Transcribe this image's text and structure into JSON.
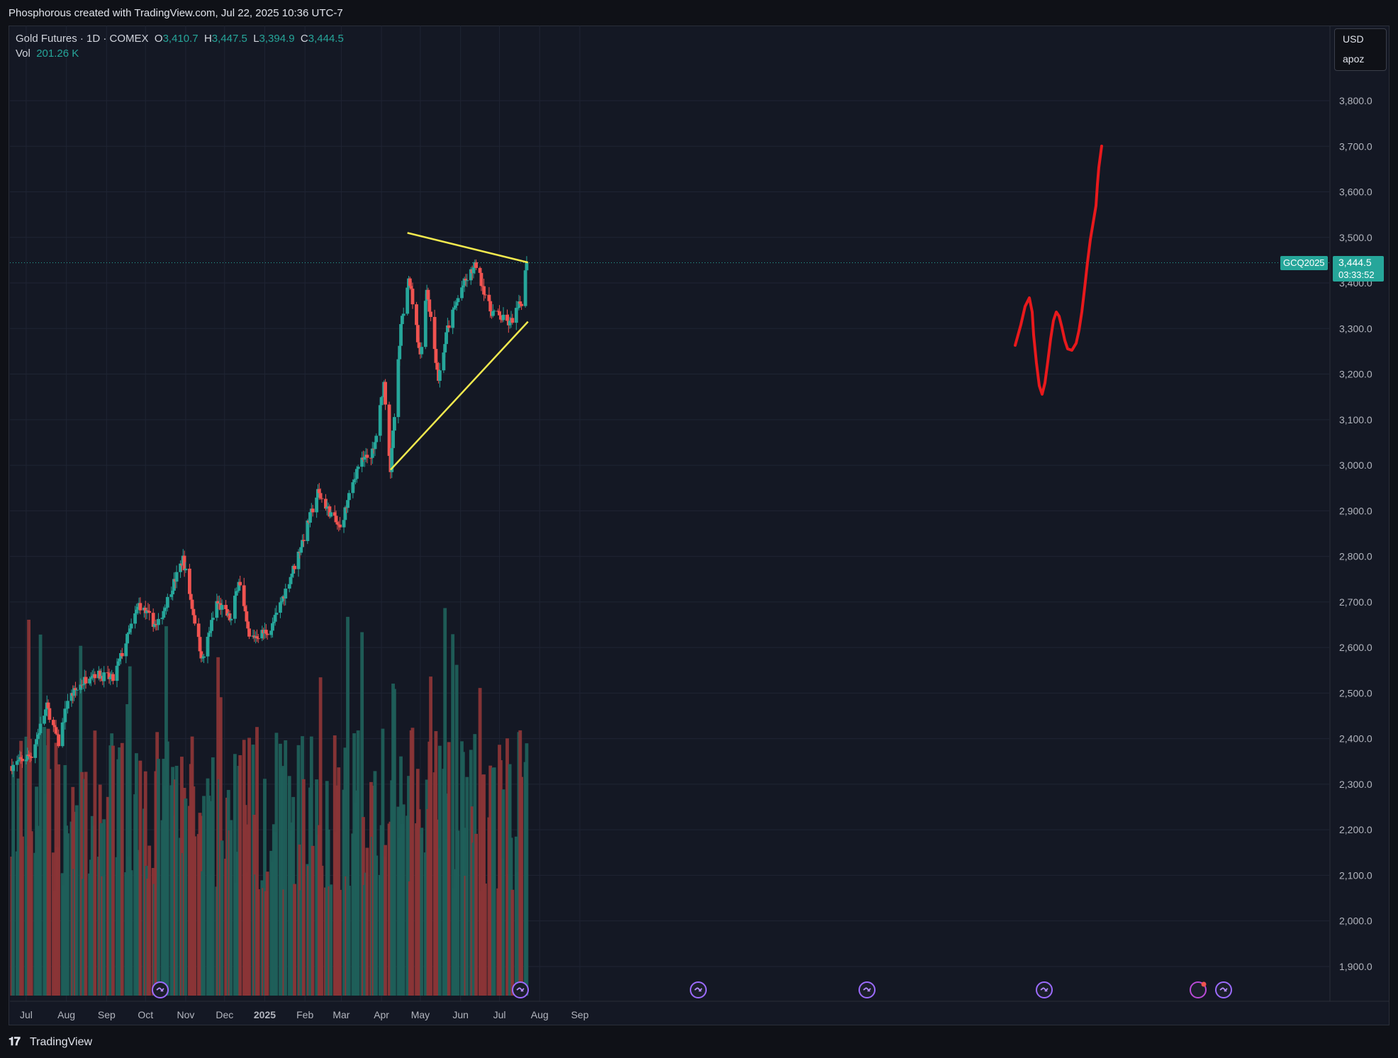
{
  "header": {
    "caption": "Phosphorous created with TradingView.com, Jul 22, 2025 10:36 UTC-7"
  },
  "legend": {
    "symbol": "Gold Futures · 1D · COMEX",
    "open_label": "O",
    "open": "3,410.7",
    "high_label": "H",
    "high": "3,447.5",
    "low_label": "L",
    "low": "3,394.9",
    "close_label": "C",
    "close": "3,444.5",
    "vol_label": "Vol",
    "vol": "201.26 K"
  },
  "currency_box": {
    "currency": "USD",
    "mode": "apoz"
  },
  "price_tag": {
    "symbol": "GCQ2025",
    "price": "3,444.5",
    "countdown": "03:33:52"
  },
  "footer": {
    "brand": "TradingView"
  },
  "colors": {
    "up": "#26a69a",
    "down": "#ef5350",
    "trend": "#f2e94e",
    "drawing": "#e8191c",
    "background": "#141824",
    "grid": "#1f2433"
  },
  "icons": [
    "economic-event-icon",
    "tradingview-logo-icon",
    "earnings-flag-icon"
  ],
  "chart_data": {
    "type": "candlestick",
    "y_axis": {
      "min": 1850,
      "max": 3900,
      "ticks": [
        1900,
        2000,
        2100,
        2200,
        2300,
        2400,
        2500,
        2600,
        2700,
        2800,
        2900,
        3000,
        3100,
        3200,
        3300,
        3400,
        3500,
        3600,
        3700,
        3800
      ],
      "tick_labels": [
        "1,900.0",
        "2,000.0",
        "2,100.0",
        "2,200.0",
        "2,300.0",
        "2,400.0",
        "2,500.0",
        "2,600.0",
        "2,700.0",
        "2,800.0",
        "2,900.0",
        "3,000.0",
        "3,100.0",
        "3,200.0",
        "3,300.0",
        "3,400.0",
        "3,500.0",
        "3,600.0",
        "3,700.0",
        "3,800.0"
      ]
    },
    "x_axis": {
      "tick_labels": [
        "Jul",
        "Aug",
        "Sep",
        "Oct",
        "Nov",
        "Dec",
        "2025",
        "Feb",
        "Mar",
        "Apr",
        "May",
        "Jun",
        "Jul",
        "Aug",
        "Sep"
      ]
    },
    "close_anchors": [
      [
        "2024-06-20",
        2340
      ],
      [
        "2024-07-05",
        2365
      ],
      [
        "2024-07-17",
        2470
      ],
      [
        "2024-07-26",
        2390
      ],
      [
        "2024-08-02",
        2485
      ],
      [
        "2024-08-20",
        2545
      ],
      [
        "2024-09-06",
        2530
      ],
      [
        "2024-09-26",
        2695
      ],
      [
        "2024-10-10",
        2645
      ],
      [
        "2024-10-30",
        2795
      ],
      [
        "2024-11-14",
        2570
      ],
      [
        "2024-11-25",
        2700
      ],
      [
        "2024-12-06",
        2660
      ],
      [
        "2024-12-12",
        2750
      ],
      [
        "2024-12-20",
        2620
      ],
      [
        "2025-01-06",
        2640
      ],
      [
        "2025-01-24",
        2780
      ],
      [
        "2025-02-11",
        2940
      ],
      [
        "2025-02-28",
        2860
      ],
      [
        "2025-03-14",
        3000
      ],
      [
        "2025-03-26",
        3030
      ],
      [
        "2025-04-03",
        3180
      ],
      [
        "2025-04-08",
        2990
      ],
      [
        "2025-04-16",
        3300
      ],
      [
        "2025-04-22",
        3420
      ],
      [
        "2025-05-01",
        3240
      ],
      [
        "2025-05-06",
        3390
      ],
      [
        "2025-05-15",
        3190
      ],
      [
        "2025-05-22",
        3300
      ],
      [
        "2025-06-02",
        3390
      ],
      [
        "2025-06-13",
        3440
      ],
      [
        "2025-06-24",
        3340
      ],
      [
        "2025-07-09",
        3310
      ],
      [
        "2025-07-18",
        3360
      ],
      [
        "2025-07-22",
        3444.5
      ]
    ],
    "volume_pane": {
      "range_k": [
        0,
        300
      ]
    },
    "trendlines": [
      {
        "name": "triangle-upper",
        "from": [
          "2025-04-21",
          3510
        ],
        "to": [
          "2025-07-23",
          3445
        ]
      },
      {
        "name": "triangle-lower",
        "from": [
          "2025-04-08",
          2990
        ],
        "to": [
          "2025-07-23",
          3315
        ]
      }
    ],
    "last_price": 3444.5
  }
}
